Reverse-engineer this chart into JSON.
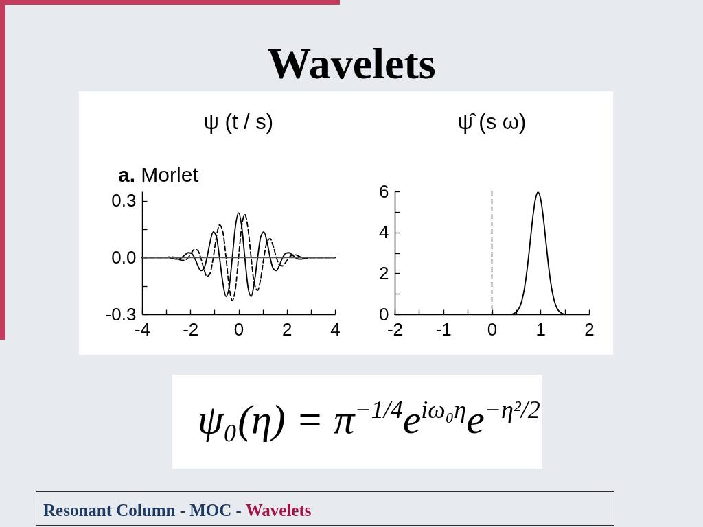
{
  "chart_data": [
    {
      "type": "other",
      "title": "Wavelets"
    },
    {
      "type": "line",
      "title": "ψ (t / s)",
      "annotations": [
        "a. Morlet"
      ],
      "x": [
        -4,
        -3.5,
        -3,
        -2.88,
        -2.75,
        -2.62,
        -2.49,
        -2.36,
        -2.23,
        -2.09,
        -1.96,
        -1.83,
        -1.7,
        -1.57,
        -1.44,
        -1.31,
        -1.18,
        -1.05,
        -0.92,
        -0.79,
        -0.65,
        -0.52,
        -0.39,
        -0.26,
        -0.13,
        0,
        0.13,
        0.26,
        0.39,
        0.52,
        0.65,
        0.79,
        0.92,
        1.05,
        1.18,
        1.31,
        1.44,
        1.57,
        1.7,
        1.83,
        1.96,
        2.09,
        2.23,
        2.36,
        2.49,
        2.62,
        2.75,
        2.88,
        3,
        3.5,
        4
      ],
      "series": [
        {
          "color": "#000000",
          "line_style": "solid",
          "values": [
            0,
            0,
            0,
            0,
            -0.004,
            -0.008,
            -0.008,
            0,
            0.014,
            0.026,
            0.024,
            0,
            -0.039,
            -0.069,
            -0.059,
            0,
            0.083,
            0.136,
            0.11,
            0,
            -0.135,
            -0.206,
            -0.155,
            0,
            0.165,
            0.236,
            0.165,
            0,
            -0.155,
            -0.206,
            -0.135,
            0,
            0.11,
            0.136,
            0.083,
            0,
            -0.059,
            -0.069,
            -0.039,
            0,
            0.024,
            0.026,
            0.014,
            0,
            -0.008,
            -0.008,
            -0.004,
            0,
            0,
            0,
            0
          ]
        },
        {
          "color": "#000000",
          "line_style": "dashed",
          "values": [
            0,
            0,
            0,
            0.004,
            0.004,
            0,
            -0.008,
            -0.015,
            -0.014,
            0,
            0.024,
            0.044,
            0.039,
            0,
            -0.059,
            -0.1,
            -0.083,
            0,
            0.11,
            0.173,
            0.135,
            0,
            -0.155,
            -0.228,
            -0.165,
            0,
            0.165,
            0.228,
            0.155,
            0,
            -0.135,
            -0.173,
            -0.11,
            0,
            0.083,
            0.1,
            0.059,
            0,
            -0.039,
            -0.044,
            -0.024,
            0,
            0.014,
            0.015,
            0.008,
            0,
            -0.004,
            -0.004,
            0,
            0,
            0
          ]
        }
      ],
      "xlim": [
        -4,
        4
      ],
      "xticks": [
        -4,
        {
          "value": -3,
          "label": null
        },
        -2,
        {
          "value": -1,
          "label": null
        },
        0,
        {
          "value": 1,
          "label": null
        },
        2,
        {
          "value": 3,
          "label": null
        },
        4
      ],
      "ylim": [
        -0.3,
        0.35
      ],
      "yticks": [
        -0.3,
        {
          "value": -0.15,
          "label": null
        },
        {
          "value": 0,
          "label": "0.0"
        },
        {
          "value": 0.15,
          "label": null
        },
        0.3
      ],
      "ref_lines": [
        {
          "axis": "y",
          "value": 0,
          "color": "#555555"
        }
      ]
    },
    {
      "type": "line",
      "title": "ψ̂ (s ω)",
      "x": [
        -2,
        0.4,
        0.45,
        0.5,
        0.55,
        0.6,
        0.65,
        0.7,
        0.75,
        0.8,
        0.85,
        0.9,
        0.95,
        1,
        1.05,
        1.1,
        1.15,
        1.2,
        1.25,
        1.3,
        1.35,
        1.4,
        1.45,
        1.5,
        2
      ],
      "values": [
        0,
        0,
        0.04,
        0.11,
        0.25,
        0.53,
        1.01,
        1.73,
        2.7,
        3.82,
        4.89,
        5.67,
        5.96,
        5.67,
        4.89,
        3.82,
        2.7,
        1.73,
        1.01,
        0.53,
        0.25,
        0.11,
        0.04,
        0,
        0
      ],
      "color": "#000000",
      "xlim": [
        -2,
        2
      ],
      "xticks": [
        -2,
        {
          "value": -1.5,
          "label": null
        },
        -1,
        {
          "value": -0.5,
          "label": null
        },
        0,
        {
          "value": 0.5,
          "label": null
        },
        1,
        {
          "value": 1.5,
          "label": null
        },
        2
      ],
      "ylim": [
        0,
        6
      ],
      "yticks": [
        0,
        {
          "value": 1,
          "label": null
        },
        2,
        {
          "value": 3,
          "label": null
        },
        4,
        {
          "value": 5,
          "label": null
        },
        6
      ],
      "ref_lines": [
        {
          "axis": "x",
          "value": 0,
          "color": "#333333",
          "line_style": "dashed"
        }
      ]
    },
    {
      "type": "other",
      "annotations": [
        "ψ₀(η) = π$^{−1/4}$e$^{iω₀η}$e$^{−η²/2}$",
        "Resonant Column - MOC -",
        "Wavelets"
      ]
    }
  ]
}
